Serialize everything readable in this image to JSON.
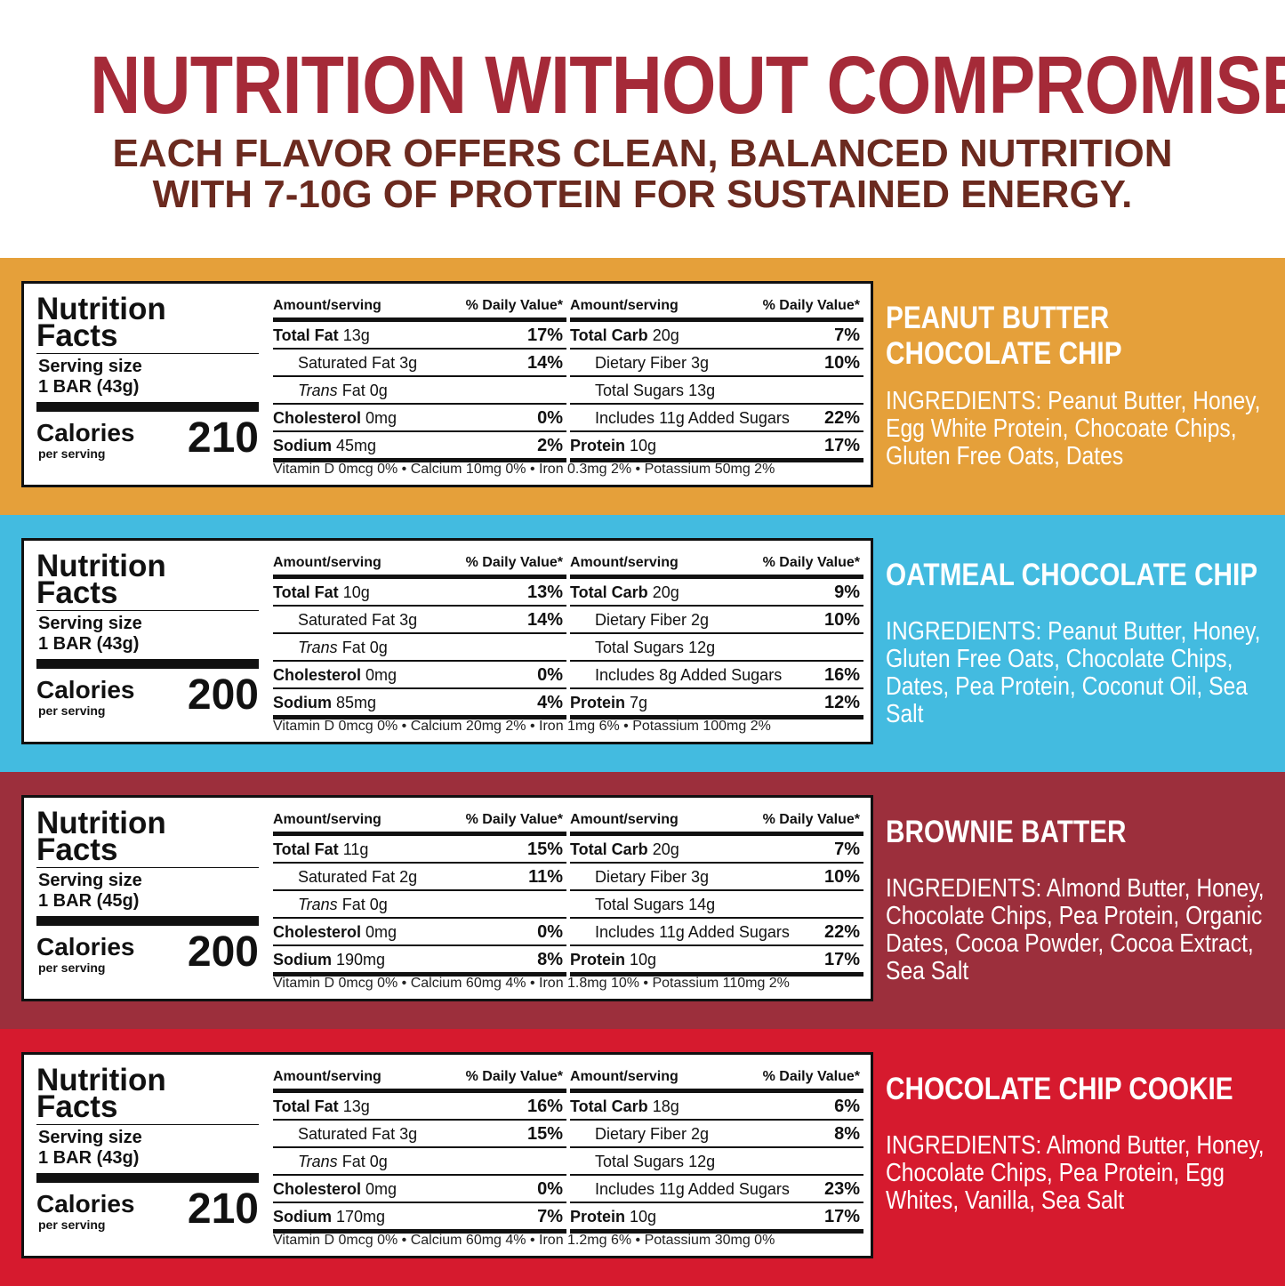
{
  "header": {
    "title": "NUTRITION WITHOUT COMPROMISE",
    "subtitle_line1": "EACH FLAVOR OFFERS CLEAN, BALANCED NUTRITION",
    "subtitle_line2": "WITH 7-10G OF PROTEIN FOR SUSTAINED ENERGY."
  },
  "labels": {
    "facts_title_1": "Nutrition",
    "facts_title_2": "Facts",
    "serving_size": "Serving size",
    "calories": "Calories",
    "per_serving": "per serving",
    "amount_serving": "Amount/serving",
    "daily_value": "% Daily Value*",
    "total_fat": "Total Fat",
    "saturated_fat": "Saturated Fat",
    "trans": "Trans",
    "fat": "Fat",
    "cholesterol": "Cholesterol",
    "sodium": "Sodium",
    "total_carb": "Total Carb",
    "dietary_fiber": "Dietary Fiber",
    "total_sugars": "Total Sugars",
    "includes": "Includes",
    "added_sugars": "Added Sugars",
    "protein": "Protein"
  },
  "colors": {
    "title": "#a52a38",
    "subtitle": "#6b2a1f",
    "band_1": "#e5a03a",
    "band_2": "#43bbe0",
    "band_3": "#9c2f3c",
    "band_4": "#d61a2e"
  },
  "products": [
    {
      "flavor_line1": "PEANUT BUTTER",
      "flavor_line2": "CHOCOLATE CHIP",
      "ingredients": "INGREDIENTS: Peanut Butter, Honey, Egg White Protein, Chocoate Chips, Gluten Free Oats, Dates",
      "serving": "1 BAR (43g)",
      "calories": "210",
      "total_fat": "13g",
      "total_fat_dv": "17%",
      "sat_fat": "3g",
      "sat_fat_dv": "14%",
      "trans_fat": "0g",
      "cholesterol": "0mg",
      "cholesterol_dv": "0%",
      "sodium": "45mg",
      "sodium_dv": "2%",
      "carb": "20g",
      "carb_dv": "7%",
      "fiber": "3g",
      "fiber_dv": "10%",
      "sugars": "13g",
      "added_sugars": "11g",
      "added_sugars_dv": "22%",
      "protein": "10g",
      "protein_dv": "17%",
      "vitamins": "Vitamin D 0mcg 0% • Calcium 10mg 0% • Iron 0.3mg 2% • Potassium 50mg 2%"
    },
    {
      "flavor_line1": "OATMEAL CHOCOLATE CHIP",
      "flavor_line2": "",
      "ingredients": "INGREDIENTS: Peanut Butter, Honey, Gluten Free Oats, Chocolate Chips, Dates, Pea Protein, Coconut Oil, Sea Salt",
      "serving": "1 BAR (43g)",
      "calories": "200",
      "total_fat": "10g",
      "total_fat_dv": "13%",
      "sat_fat": "3g",
      "sat_fat_dv": "14%",
      "trans_fat": "0g",
      "cholesterol": "0mg",
      "cholesterol_dv": "0%",
      "sodium": "85mg",
      "sodium_dv": "4%",
      "carb": "20g",
      "carb_dv": "9%",
      "fiber": "2g",
      "fiber_dv": "10%",
      "sugars": "12g",
      "added_sugars": "8g",
      "added_sugars_dv": "16%",
      "protein": "7g",
      "protein_dv": "12%",
      "vitamins": "Vitamin D 0mcg 0% • Calcium 20mg 2% • Iron 1mg 6% • Potassium 100mg 2%"
    },
    {
      "flavor_line1": "BROWNIE BATTER",
      "flavor_line2": "",
      "ingredients": "INGREDIENTS: Almond Butter, Honey, Chocolate Chips, Pea Protein, Organic Dates, Cocoa Powder, Cocoa Extract, Sea Salt",
      "serving": "1 BAR (45g)",
      "calories": "200",
      "total_fat": "11g",
      "total_fat_dv": "15%",
      "sat_fat": "2g",
      "sat_fat_dv": "11%",
      "trans_fat": "0g",
      "cholesterol": "0mg",
      "cholesterol_dv": "0%",
      "sodium": "190mg",
      "sodium_dv": "8%",
      "carb": "20g",
      "carb_dv": "7%",
      "fiber": "3g",
      "fiber_dv": "10%",
      "sugars": "14g",
      "added_sugars": "11g",
      "added_sugars_dv": "22%",
      "protein": "10g",
      "protein_dv": "17%",
      "vitamins": "Vitamin D 0mcg 0% • Calcium 60mg 4% • Iron 1.8mg 10% • Potassium 110mg 2%"
    },
    {
      "flavor_line1": "CHOCOLATE CHIP COOKIE",
      "flavor_line2": "",
      "ingredients": "INGREDIENTS: Almond Butter, Honey, Chocolate Chips, Pea Protein, Egg Whites, Vanilla, Sea Salt",
      "serving": "1 BAR (43g)",
      "calories": "210",
      "total_fat": "13g",
      "total_fat_dv": "16%",
      "sat_fat": "3g",
      "sat_fat_dv": "15%",
      "trans_fat": "0g",
      "cholesterol": "0mg",
      "cholesterol_dv": "0%",
      "sodium": "170mg",
      "sodium_dv": "7%",
      "carb": "18g",
      "carb_dv": "6%",
      "fiber": "2g",
      "fiber_dv": "8%",
      "sugars": "12g",
      "added_sugars": "11g",
      "added_sugars_dv": "23%",
      "protein": "10g",
      "protein_dv": "17%",
      "vitamins": "Vitamin D 0mcg 0% • Calcium 60mg 4% • Iron 1.2mg 6% • Potassium 30mg 0%"
    }
  ]
}
